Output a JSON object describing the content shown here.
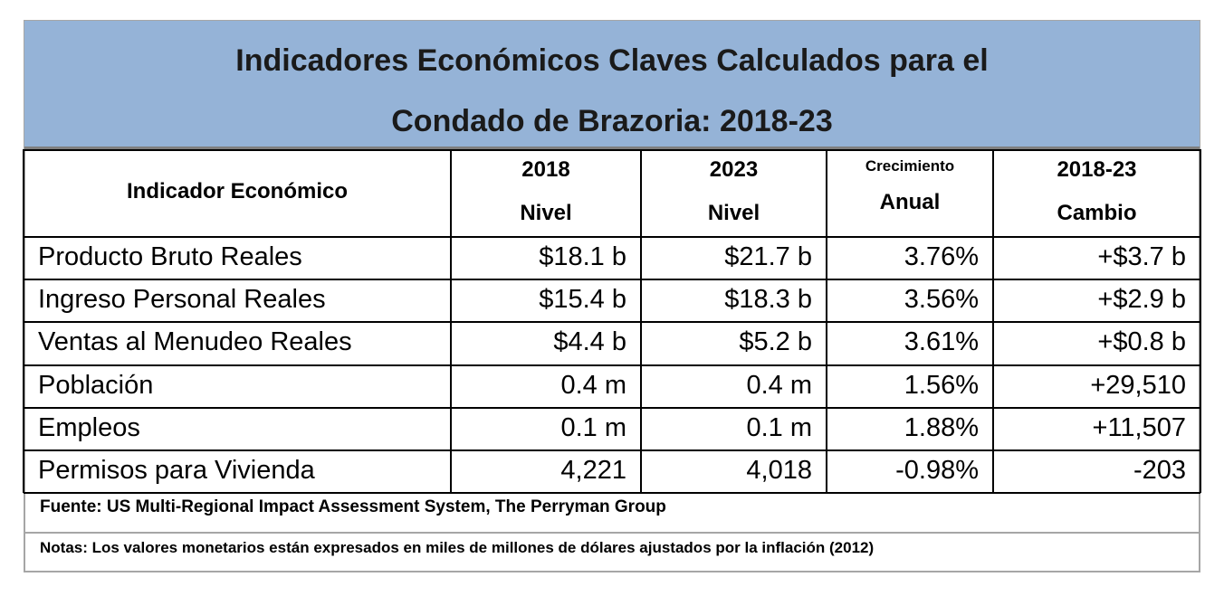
{
  "title": {
    "line1": "Indicadores Económicos Claves Calculados para el",
    "line2": "Condado de Brazoria: 2018-23"
  },
  "table": {
    "header": [
      {
        "line1": "Indicador Económico"
      },
      {
        "line1": "2018",
        "line2": "Nivel"
      },
      {
        "line1": "2023",
        "line2": "Nivel"
      },
      {
        "line1": "Crecimiento",
        "line2": "Anual"
      },
      {
        "line1": "2018-23",
        "line2": "Cambio"
      }
    ],
    "rows": [
      [
        "Producto Bruto Reales",
        "$18.1 b",
        "$21.7 b",
        "3.76%",
        "+$3.7 b"
      ],
      [
        "Ingreso Personal Reales",
        "$15.4 b",
        "$18.3 b",
        "3.56%",
        "+$2.9 b"
      ],
      [
        "Ventas al Menudeo Reales",
        "$4.4 b",
        "$5.2 b",
        "3.61%",
        "+$0.8 b"
      ],
      [
        "Población",
        "0.4 m",
        "0.4 m",
        "1.56%",
        "+29,510"
      ],
      [
        "Empleos",
        "0.1 m",
        "0.1 m",
        "1.88%",
        "+11,507"
      ],
      [
        "Permisos para Vivienda",
        "4,221",
        "4,018",
        "-0.98%",
        "-203"
      ]
    ]
  },
  "source": "Fuente: US Multi-Regional Impact Assessment System, The Perryman Group",
  "notes": "Notas: Los valores monetarios están expresados en miles de millones de dólares ajustados por la inflación (2012)"
}
